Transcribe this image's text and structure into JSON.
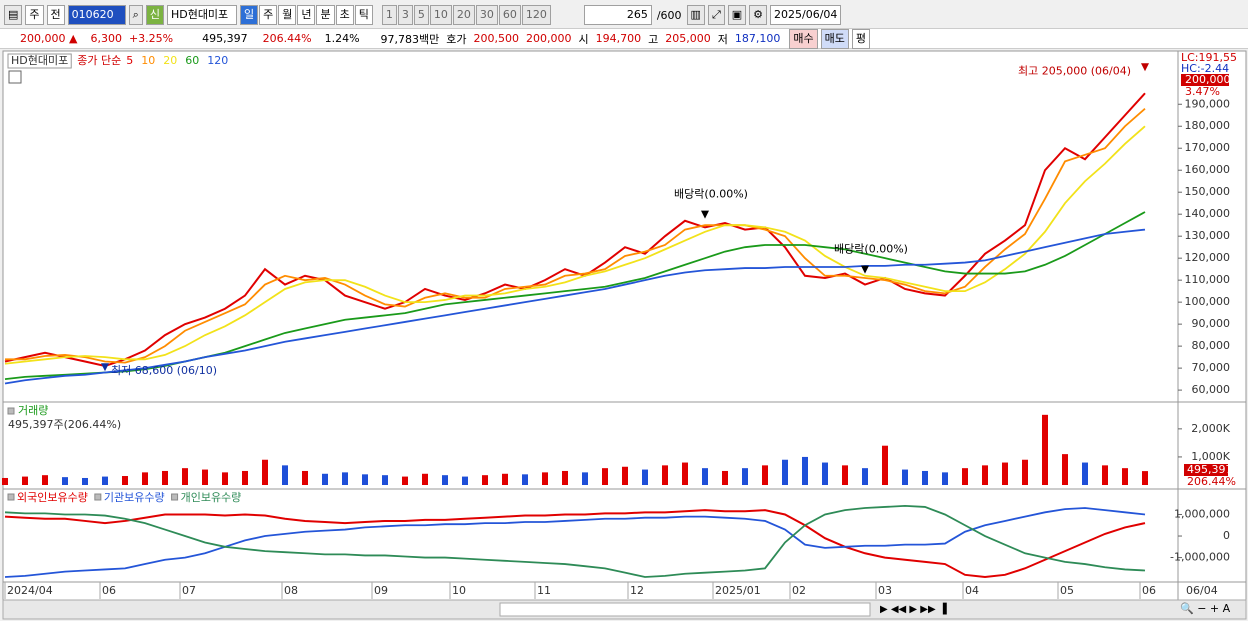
{
  "toolbar": {
    "market": "주",
    "type": "전",
    "code": "010620",
    "badge": "신",
    "name": "HD현대미포",
    "periods": [
      "일",
      "주",
      "월",
      "년",
      "분",
      "초",
      "틱"
    ],
    "intervals": [
      "1",
      "3",
      "5",
      "10",
      "20",
      "30",
      "60",
      "120"
    ],
    "count": "265",
    "max": "/600",
    "date": "2025/06/04"
  },
  "quote": {
    "price": "200,000 ▲",
    "change": "6,300",
    "change_pct": "+3.25%",
    "volume": "495,397",
    "volume_pct": "206.44%",
    "turnover": "1.24%",
    "amount": "97,783백만",
    "ask_label": "호가",
    "ask": "200,500",
    "bid": "200,000",
    "open_label": "시",
    "open": "194,700",
    "high_label": "고",
    "high": "205,000",
    "low_label": "저",
    "low": "187,100",
    "buy": "매수",
    "sell": "매도",
    "avg": "평"
  },
  "chart_data": [
    {
      "type": "line",
      "title": "HD현대미포",
      "legend_label": "종가 단순",
      "xlim": [
        0,
        57
      ],
      "ylim": [
        55500,
        212400
      ],
      "yticks": [
        {
          "value": 60000,
          "label": "60,000"
        },
        {
          "value": 70000,
          "label": "70,000"
        },
        {
          "value": 80000,
          "label": "80,000"
        },
        {
          "value": 90000,
          "label": "90,000"
        },
        {
          "value": 100000,
          "label": "100,000"
        },
        {
          "value": 110000,
          "label": "110,000"
        },
        {
          "value": 120000,
          "label": "120,000"
        },
        {
          "value": 130000,
          "label": "130,000"
        },
        {
          "value": 140000,
          "label": "140,000"
        },
        {
          "value": 150000,
          "label": "150,000"
        },
        {
          "value": 160000,
          "label": "160,000"
        },
        {
          "value": 170000,
          "label": "170,000"
        },
        {
          "value": 180000,
          "label": "180,000"
        },
        {
          "value": 190000,
          "label": "190,000"
        }
      ],
      "series": [
        {
          "name": "5",
          "color": "#e00000",
          "values": [
            73000,
            75000,
            77000,
            75000,
            73000,
            71000,
            74000,
            78000,
            85000,
            90000,
            93000,
            97000,
            103000,
            115000,
            108000,
            112000,
            110000,
            103000,
            100000,
            97000,
            100000,
            106000,
            103000,
            101000,
            104000,
            108000,
            106000,
            110000,
            115000,
            112000,
            118000,
            125000,
            122000,
            130000,
            137000,
            134000,
            136000,
            133000,
            134000,
            125000,
            112000,
            111000,
            113000,
            108000,
            111000,
            106000,
            104000,
            103000,
            112000,
            122000,
            128000,
            135000,
            160000,
            170000,
            165000,
            175000,
            185000,
            195000
          ]
        },
        {
          "name": "10",
          "color": "#ff8c00",
          "values": [
            74000,
            74000,
            75500,
            76000,
            75000,
            73000,
            72500,
            75000,
            80000,
            87000,
            91000,
            95000,
            99000,
            108000,
            112000,
            110000,
            111000,
            108000,
            103000,
            99000,
            98000,
            102000,
            104000,
            102000,
            102000,
            106000,
            107000,
            108000,
            112000,
            113000,
            115000,
            121000,
            123000,
            126000,
            133000,
            135000,
            135000,
            135000,
            133000,
            130000,
            120000,
            112000,
            112000,
            111000,
            110000,
            108000,
            105000,
            104000,
            107000,
            116000,
            124000,
            131000,
            147000,
            164000,
            167000,
            170000,
            180000,
            188000
          ]
        },
        {
          "name": "20",
          "color": "#f2e21a",
          "values": [
            72000,
            73000,
            74000,
            75000,
            75500,
            75000,
            74000,
            74000,
            76000,
            80000,
            85000,
            89000,
            94000,
            100000,
            106000,
            109000,
            110000,
            110000,
            107000,
            103000,
            100000,
            100000,
            101000,
            103000,
            103000,
            104000,
            106000,
            107000,
            109000,
            112000,
            114000,
            117000,
            120000,
            124000,
            128000,
            132000,
            135000,
            135000,
            134000,
            132000,
            128000,
            121000,
            116000,
            112000,
            111000,
            109000,
            107000,
            105000,
            105000,
            109000,
            115000,
            122000,
            132000,
            145000,
            155000,
            163000,
            172000,
            180000
          ]
        },
        {
          "name": "60",
          "color": "#1a9a1a",
          "values": [
            65000,
            66000,
            66500,
            67000,
            67500,
            68000,
            68500,
            69500,
            71000,
            73000,
            75000,
            77000,
            80000,
            83000,
            86000,
            88000,
            90000,
            92000,
            93000,
            94000,
            95000,
            97000,
            99000,
            100000,
            101000,
            102000,
            103000,
            104000,
            105000,
            106000,
            107000,
            109000,
            111000,
            114000,
            117000,
            120000,
            123000,
            125000,
            126000,
            126000,
            126000,
            125000,
            124000,
            122000,
            120000,
            118000,
            116000,
            114000,
            113000,
            113000,
            113000,
            114000,
            117000,
            121000,
            126000,
            131000,
            136000,
            141000
          ]
        },
        {
          "name": "120",
          "color": "#2455d8",
          "values": [
            63000,
            64500,
            65500,
            66500,
            67000,
            68000,
            69000,
            70000,
            71500,
            73000,
            75000,
            76500,
            78000,
            80000,
            82000,
            83500,
            85000,
            86500,
            88000,
            89500,
            91000,
            92500,
            94000,
            95500,
            97000,
            98500,
            100000,
            101500,
            103000,
            104500,
            106000,
            108000,
            110000,
            112000,
            113500,
            114500,
            115000,
            115500,
            115500,
            116000,
            116000,
            116000,
            116000,
            116500,
            116500,
            117000,
            117000,
            117500,
            118000,
            119000,
            121000,
            123000,
            125000,
            127000,
            129000,
            131000,
            132000,
            133000
          ]
        }
      ],
      "annotations": [
        {
          "text": "최고 205,000 (06/04)",
          "x": 57,
          "y": 205000,
          "color": "#c00000"
        },
        {
          "text": "최저 68,600 (06/10)",
          "x": 5,
          "y": 68600,
          "color": "#1030a0"
        },
        {
          "text": "배당락(0.00%)",
          "x": 35,
          "y": 138000,
          "color": "#000000"
        },
        {
          "text": "배당락(0.00%)",
          "x": 43,
          "y": 113000,
          "color": "#000000"
        }
      ],
      "last_label": "200,000",
      "last_pct": "3.47%",
      "lc": "LC:191,55",
      "hc": "HC:-2.44"
    },
    {
      "type": "bar",
      "title": "거래량",
      "subtitle": "495,397주(206.44%)",
      "xlim": [
        0,
        57
      ],
      "ylim": [
        0,
        2850
      ],
      "yticks": [
        {
          "value": 1000,
          "label": "1,000K"
        },
        {
          "value": 2000,
          "label": "2,000K"
        }
      ],
      "up_color": "#e00000",
      "down_color": "#1e4fd8",
      "values": [
        250,
        300,
        350,
        280,
        250,
        300,
        320,
        450,
        500,
        600,
        550,
        450,
        500,
        900,
        700,
        500,
        400,
        450,
        380,
        350,
        300,
        400,
        350,
        300,
        350,
        400,
        380,
        450,
        500,
        450,
        600,
        650,
        550,
        700,
        800,
        600,
        500,
        600,
        700,
        900,
        1000,
        800,
        700,
        600,
        1400,
        550,
        500,
        450,
        600,
        700,
        800,
        900,
        2500,
        1100,
        800,
        700,
        600,
        495.397
      ],
      "last_label": "495,397",
      "last_pct": "206.44%"
    },
    {
      "type": "line",
      "xlim": [
        0,
        57
      ],
      "ylim": [
        -2040000,
        1950000
      ],
      "yticks": [
        {
          "value": 1000000,
          "label": "1,000,000"
        },
        0,
        {
          "value": -1000000,
          "label": "-1,000,000"
        }
      ],
      "xticks": [
        {
          "value": 0,
          "label": "2024/04"
        },
        {
          "value": 4.75,
          "label": "06"
        },
        {
          "value": 8.75,
          "label": "07"
        },
        {
          "value": 13.85,
          "label": "08"
        },
        {
          "value": 18.35,
          "label": "09"
        },
        {
          "value": 22.25,
          "label": "10"
        },
        {
          "value": 26.5,
          "label": "11"
        },
        {
          "value": 31.15,
          "label": "12"
        },
        {
          "value": 35.4,
          "label": "2025/01"
        },
        {
          "value": 39.25,
          "label": "02"
        },
        {
          "value": 43.55,
          "label": "03"
        },
        {
          "value": 47.9,
          "label": "04"
        },
        {
          "value": 52.65,
          "label": "05"
        },
        {
          "value": 56.75,
          "label": "06"
        }
      ],
      "end_label": "06/04",
      "series": [
        {
          "name": "외국인보유수량",
          "color": "#e00000",
          "values": [
            900000,
            850000,
            800000,
            800000,
            700000,
            600000,
            700000,
            850000,
            1000000,
            1000000,
            1000000,
            950000,
            1000000,
            950000,
            800000,
            700000,
            650000,
            600000,
            650000,
            700000,
            700000,
            750000,
            750000,
            800000,
            850000,
            900000,
            950000,
            950000,
            1000000,
            1000000,
            1050000,
            1050000,
            1100000,
            1100000,
            1150000,
            1200000,
            1150000,
            1150000,
            1200000,
            1000000,
            500000,
            -100000,
            -500000,
            -800000,
            -1000000,
            -1100000,
            -1200000,
            -1300000,
            -1800000,
            -1900000,
            -1800000,
            -1500000,
            -1100000,
            -700000,
            -300000,
            100000,
            400000,
            600000
          ]
        },
        {
          "name": "기관보유수량",
          "color": "#2455d8",
          "values": [
            -1900000,
            -1850000,
            -1750000,
            -1650000,
            -1600000,
            -1550000,
            -1500000,
            -1300000,
            -1100000,
            -1000000,
            -800000,
            -500000,
            -200000,
            0,
            100000,
            200000,
            250000,
            300000,
            400000,
            450000,
            500000,
            500000,
            550000,
            550000,
            600000,
            600000,
            650000,
            650000,
            700000,
            750000,
            800000,
            800000,
            850000,
            850000,
            900000,
            900000,
            850000,
            800000,
            700000,
            300000,
            -400000,
            -550000,
            -500000,
            -450000,
            -450000,
            -400000,
            -400000,
            -350000,
            200000,
            500000,
            700000,
            900000,
            1100000,
            1250000,
            1300000,
            1200000,
            1100000,
            1000000
          ]
        },
        {
          "name": "개인보유수량",
          "color": "#2e8b57",
          "values": [
            1100000,
            1050000,
            1050000,
            1000000,
            1000000,
            950000,
            800000,
            600000,
            300000,
            0,
            -300000,
            -500000,
            -600000,
            -700000,
            -750000,
            -800000,
            -850000,
            -850000,
            -900000,
            -900000,
            -950000,
            -1000000,
            -1000000,
            -1050000,
            -1100000,
            -1150000,
            -1200000,
            -1250000,
            -1300000,
            -1400000,
            -1500000,
            -1700000,
            -1900000,
            -1850000,
            -1750000,
            -1700000,
            -1650000,
            -1600000,
            -1500000,
            -300000,
            500000,
            1000000,
            1200000,
            1300000,
            1350000,
            1400000,
            1350000,
            1000000,
            500000,
            0,
            -400000,
            -800000,
            -1000000,
            -1200000,
            -1300000,
            -1450000,
            -1550000,
            -1600000
          ]
        }
      ]
    }
  ]
}
